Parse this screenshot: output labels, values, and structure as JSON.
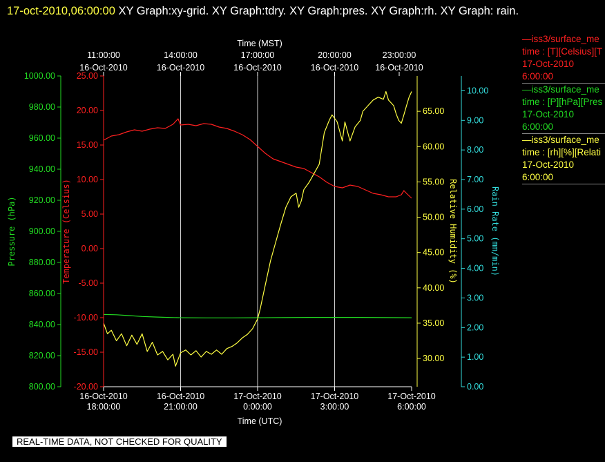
{
  "header": {
    "timestamp": "17-oct-2010,06:00:00",
    "title_rest": "  XY Graph:xy-grid.  XY Graph:tdry.  XY Graph:pres.  XY Graph:rh.  XY Graph: rain."
  },
  "notice": "REAL-TIME DATA, NOT CHECKED FOR QUALITY",
  "legend": [
    {
      "line1": "iss3/surface_me",
      "line2": "time : [T][Celsius][T",
      "line3": "17-Oct-2010",
      "line4": "6:00:00",
      "color": "#ff2020"
    },
    {
      "line1": "iss3/surface_me",
      "line2": "time : [P][hPa][Pres",
      "line3": "17-Oct-2010",
      "line4": "6:00:00",
      "color": "#22dd22"
    },
    {
      "line1": "iss3/surface_me",
      "line2": "time : [rh][%][Relati",
      "line3": "17-Oct-2010",
      "line4": "6:00:00",
      "color": "#ffff44"
    }
  ],
  "chart_data": {
    "type": "line",
    "x_top": {
      "label": "Time (MST)",
      "ticks": [
        {
          "time": "11:00:00",
          "date": "16-Oct-2010"
        },
        {
          "time": "14:00:00",
          "date": "16-Oct-2010"
        },
        {
          "time": "17:00:00",
          "date": "16-Oct-2010"
        },
        {
          "time": "20:00:00",
          "date": "16-Oct-2010"
        },
        {
          "time": "23:00:00",
          "date": "16-Oct-2010"
        }
      ]
    },
    "x_bottom": {
      "label": "Time (UTC)",
      "range_hours": [
        0,
        12
      ],
      "ticks": [
        {
          "date": "16-Oct-2010",
          "time": "18:00:00",
          "hour": 0
        },
        {
          "date": "16-Oct-2010",
          "time": "21:00:00",
          "hour": 3
        },
        {
          "date": "17-Oct-2010",
          "time": "0:00:00",
          "hour": 6
        },
        {
          "date": "17-Oct-2010",
          "time": "3:00:00",
          "hour": 9
        },
        {
          "date": "17-Oct-2010",
          "time": "6:00:00",
          "hour": 12
        }
      ]
    },
    "y_axes": {
      "pressure": {
        "label": "Pressure (hPa)",
        "range": [
          800,
          1000
        ],
        "ticks": [
          "800.00",
          "820.00",
          "840.00",
          "860.00",
          "880.00",
          "900.00",
          "920.00",
          "940.00",
          "960.00",
          "980.00",
          "1000.00"
        ],
        "color": "#22dd22"
      },
      "temperature": {
        "label": "Temperature (Celsius)",
        "range": [
          -20,
          25
        ],
        "ticks": [
          "-20.00",
          "-15.00",
          "-10.00",
          "-5.00",
          "0.00",
          "5.00",
          "10.00",
          "15.00",
          "20.00",
          "25.00"
        ],
        "color": "#ff2020"
      },
      "rh": {
        "label": "Relative Humidity (%)",
        "range": [
          26,
          70
        ],
        "ticks": [
          "30.00",
          "35.00",
          "40.00",
          "45.00",
          "50.00",
          "55.00",
          "60.00",
          "65.00"
        ],
        "color": "#ffff44"
      },
      "rain": {
        "label": "Rain Rate (mm/min)",
        "range": [
          0,
          10.5
        ],
        "ticks": [
          "0.00",
          "1.00",
          "2.00",
          "3.00",
          "4.00",
          "5.00",
          "6.00",
          "7.00",
          "8.00",
          "9.00",
          "10.00"
        ],
        "color": "#33dddd"
      }
    },
    "series": [
      {
        "name": "iss3/surface_me T",
        "axis": "temperature",
        "color": "#ff2020",
        "points": [
          [
            0,
            15.7
          ],
          [
            0.3,
            16.3
          ],
          [
            0.6,
            16.5
          ],
          [
            0.9,
            16.9
          ],
          [
            1.2,
            17.2
          ],
          [
            1.5,
            17.0
          ],
          [
            1.8,
            17.3
          ],
          [
            2.1,
            17.5
          ],
          [
            2.4,
            17.4
          ],
          [
            2.7,
            18.0
          ],
          [
            2.9,
            18.8
          ],
          [
            3.0,
            17.9
          ],
          [
            3.3,
            18.0
          ],
          [
            3.6,
            17.8
          ],
          [
            3.9,
            18.1
          ],
          [
            4.2,
            18.0
          ],
          [
            4.5,
            17.6
          ],
          [
            4.8,
            17.4
          ],
          [
            5.1,
            17.0
          ],
          [
            5.4,
            16.5
          ],
          [
            5.7,
            15.8
          ],
          [
            6.0,
            14.8
          ],
          [
            6.3,
            13.8
          ],
          [
            6.6,
            13.0
          ],
          [
            6.9,
            12.6
          ],
          [
            7.2,
            12.2
          ],
          [
            7.5,
            11.8
          ],
          [
            7.8,
            11.6
          ],
          [
            8.1,
            11.0
          ],
          [
            8.4,
            10.4
          ],
          [
            8.7,
            9.6
          ],
          [
            9.0,
            9.0
          ],
          [
            9.3,
            8.8
          ],
          [
            9.6,
            9.2
          ],
          [
            9.9,
            9.0
          ],
          [
            10.2,
            8.5
          ],
          [
            10.5,
            8.0
          ],
          [
            10.8,
            7.8
          ],
          [
            11.1,
            7.5
          ],
          [
            11.4,
            7.5
          ],
          [
            11.6,
            7.8
          ],
          [
            11.7,
            8.4
          ],
          [
            11.8,
            8.0
          ],
          [
            12.0,
            7.3
          ]
        ]
      },
      {
        "name": "iss3/surface_me P",
        "axis": "pressure",
        "color": "#22dd22",
        "points": [
          [
            0,
            846.5
          ],
          [
            0.5,
            846.3
          ],
          [
            1.0,
            845.8
          ],
          [
            1.5,
            845.2
          ],
          [
            2.0,
            844.9
          ],
          [
            2.5,
            844.6
          ],
          [
            3.0,
            844.4
          ],
          [
            4.0,
            844.3
          ],
          [
            5.0,
            844.3
          ],
          [
            6.0,
            844.4
          ],
          [
            7.0,
            844.5
          ],
          [
            8.0,
            844.6
          ],
          [
            9.0,
            844.6
          ],
          [
            10.0,
            844.6
          ],
          [
            11.0,
            844.5
          ],
          [
            12.0,
            844.4
          ]
        ]
      },
      {
        "name": "iss3/surface_me rh",
        "axis": "rh",
        "color": "#ffff44",
        "points": [
          [
            0,
            35
          ],
          [
            0.15,
            33.5
          ],
          [
            0.3,
            34.0
          ],
          [
            0.5,
            32.5
          ],
          [
            0.7,
            33.5
          ],
          [
            0.9,
            31.8
          ],
          [
            1.1,
            33.3
          ],
          [
            1.3,
            32.0
          ],
          [
            1.5,
            33.5
          ],
          [
            1.7,
            31.0
          ],
          [
            1.9,
            32.3
          ],
          [
            2.1,
            30.5
          ],
          [
            2.3,
            31.0
          ],
          [
            2.5,
            29.8
          ],
          [
            2.7,
            30.6
          ],
          [
            2.8,
            28.9
          ],
          [
            3.0,
            30.8
          ],
          [
            3.2,
            31.2
          ],
          [
            3.4,
            30.5
          ],
          [
            3.6,
            31.1
          ],
          [
            3.8,
            30.2
          ],
          [
            4.0,
            31.0
          ],
          [
            4.2,
            30.6
          ],
          [
            4.4,
            31.2
          ],
          [
            4.6,
            30.6
          ],
          [
            4.8,
            31.4
          ],
          [
            5.0,
            31.7
          ],
          [
            5.2,
            32.2
          ],
          [
            5.4,
            32.9
          ],
          [
            5.6,
            33.4
          ],
          [
            5.8,
            34.2
          ],
          [
            6.0,
            35.6
          ],
          [
            6.1,
            37.0
          ],
          [
            6.3,
            40.4
          ],
          [
            6.5,
            43.8
          ],
          [
            6.7,
            46.4
          ],
          [
            6.9,
            49.0
          ],
          [
            7.1,
            51.4
          ],
          [
            7.3,
            52.9
          ],
          [
            7.5,
            53.4
          ],
          [
            7.6,
            51.4
          ],
          [
            7.7,
            52.3
          ],
          [
            7.8,
            53.9
          ],
          [
            8.0,
            54.9
          ],
          [
            8.2,
            56.2
          ],
          [
            8.4,
            57.5
          ],
          [
            8.6,
            62.0
          ],
          [
            8.8,
            63.8
          ],
          [
            8.9,
            64.5
          ],
          [
            9.1,
            63.5
          ],
          [
            9.3,
            60.8
          ],
          [
            9.4,
            63.5
          ],
          [
            9.6,
            60.8
          ],
          [
            9.8,
            62.8
          ],
          [
            10.0,
            63.7
          ],
          [
            10.1,
            65.0
          ],
          [
            10.3,
            65.8
          ],
          [
            10.5,
            66.6
          ],
          [
            10.7,
            67.0
          ],
          [
            10.9,
            66.7
          ],
          [
            11.0,
            67.8
          ],
          [
            11.1,
            66.6
          ],
          [
            11.3,
            65.8
          ],
          [
            11.4,
            64.6
          ],
          [
            11.5,
            63.7
          ],
          [
            11.6,
            63.3
          ],
          [
            11.7,
            64.5
          ],
          [
            11.8,
            65.8
          ],
          [
            11.9,
            67.0
          ],
          [
            12.0,
            67.8
          ]
        ]
      }
    ],
    "grid": true
  }
}
